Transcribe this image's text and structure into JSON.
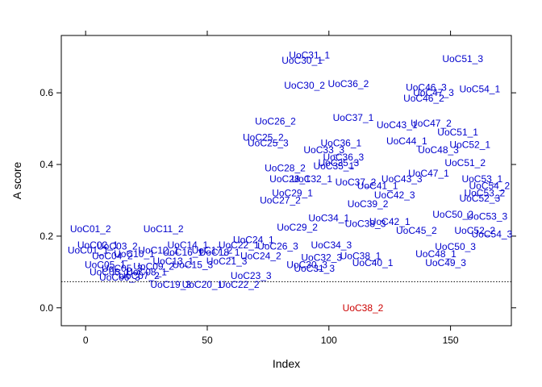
{
  "chart_data": {
    "type": "scatter",
    "xlabel": "Index",
    "ylabel": "A score",
    "xlim": [
      -10,
      175
    ],
    "ylim": [
      -0.05,
      0.76
    ],
    "xticks": [
      0,
      50,
      100,
      150
    ],
    "yticks": [
      0.0,
      0.2,
      0.4,
      0.6
    ],
    "grid": false,
    "reference_line": {
      "y": 0.073,
      "style": "dotted"
    },
    "colors": {
      "normal": "#0000cc",
      "flagged": "#cc0000",
      "axis": "#000000"
    },
    "points": [
      {
        "label": "UoC01_2",
        "x": 2,
        "y": 0.22
      },
      {
        "label": "UoC01_1",
        "x": 1,
        "y": 0.16
      },
      {
        "label": "UoC02_1",
        "x": 5,
        "y": 0.175
      },
      {
        "label": "UoC03_2",
        "x": 13,
        "y": 0.172
      },
      {
        "label": "UoC04_2",
        "x": 11,
        "y": 0.145
      },
      {
        "label": "UoC05_1",
        "x": 8,
        "y": 0.12
      },
      {
        "label": "UoC05_3",
        "x": 15,
        "y": 0.11
      },
      {
        "label": "UoC06_1",
        "x": 10,
        "y": 0.1
      },
      {
        "label": "UoC06_3",
        "x": 14,
        "y": 0.085
      },
      {
        "label": "UoC07_2",
        "x": 22,
        "y": 0.09
      },
      {
        "label": "UoC08_1",
        "x": 25,
        "y": 0.1
      },
      {
        "label": "UoC09_2",
        "x": 28,
        "y": 0.115
      },
      {
        "label": "UoC10_1",
        "x": 20,
        "y": 0.15
      },
      {
        "label": "UoC11_2",
        "x": 32,
        "y": 0.22
      },
      {
        "label": "UoC12_1",
        "x": 30,
        "y": 0.16
      },
      {
        "label": "UoC13_1",
        "x": 36,
        "y": 0.13
      },
      {
        "label": "UoC14_1",
        "x": 42,
        "y": 0.175
      },
      {
        "label": "UoC15_3",
        "x": 44,
        "y": 0.12
      },
      {
        "label": "UoC16_1",
        "x": 40,
        "y": 0.155
      },
      {
        "label": "UoC17_2",
        "x": 52,
        "y": 0.16
      },
      {
        "label": "UoC18_1",
        "x": 55,
        "y": 0.155
      },
      {
        "label": "UoC19_3",
        "x": 35,
        "y": 0.065
      },
      {
        "label": "UoC20_1",
        "x": 48,
        "y": 0.065
      },
      {
        "label": "UoC21_3",
        "x": 58,
        "y": 0.13
      },
      {
        "label": "UoC22_1",
        "x": 63,
        "y": 0.175
      },
      {
        "label": "UoC22_2",
        "x": 63,
        "y": 0.065
      },
      {
        "label": "UoC23_3",
        "x": 68,
        "y": 0.09
      },
      {
        "label": "UoC24_1",
        "x": 69,
        "y": 0.19
      },
      {
        "label": "UoC24_2",
        "x": 72,
        "y": 0.145
      },
      {
        "label": "UoC25_2",
        "x": 73,
        "y": 0.475
      },
      {
        "label": "UoC25_3",
        "x": 75,
        "y": 0.46
      },
      {
        "label": "UoC26_2",
        "x": 78,
        "y": 0.52
      },
      {
        "label": "UoC26_3",
        "x": 79,
        "y": 0.172
      },
      {
        "label": "UoC27_2",
        "x": 80,
        "y": 0.3
      },
      {
        "label": "UoC28_2",
        "x": 82,
        "y": 0.39
      },
      {
        "label": "UoC28_1",
        "x": 84,
        "y": 0.36
      },
      {
        "label": "UoC29_1",
        "x": 85,
        "y": 0.32
      },
      {
        "label": "UoC29_2",
        "x": 87,
        "y": 0.225
      },
      {
        "label": "UoC30_1",
        "x": 89,
        "y": 0.69
      },
      {
        "label": "UoC30_2",
        "x": 90,
        "y": 0.62
      },
      {
        "label": "UoC30_3",
        "x": 91,
        "y": 0.12
      },
      {
        "label": "UoC31_1",
        "x": 92,
        "y": 0.705
      },
      {
        "label": "UoC31_3",
        "x": 94,
        "y": 0.11
      },
      {
        "label": "UoC32_1",
        "x": 93,
        "y": 0.36
      },
      {
        "label": "UoC32_3",
        "x": 97,
        "y": 0.14
      },
      {
        "label": "UoC33_3",
        "x": 98,
        "y": 0.44
      },
      {
        "label": "UoC34_1",
        "x": 100,
        "y": 0.25
      },
      {
        "label": "UoC34_3",
        "x": 101,
        "y": 0.175
      },
      {
        "label": "UoC35_1",
        "x": 102,
        "y": 0.395
      },
      {
        "label": "UoC35_3",
        "x": 104,
        "y": 0.405
      },
      {
        "label": "UoC36_1",
        "x": 105,
        "y": 0.46
      },
      {
        "label": "UoC36_2",
        "x": 108,
        "y": 0.625
      },
      {
        "label": "UoC36_3",
        "x": 106,
        "y": 0.42
      },
      {
        "label": "UoC37_1",
        "x": 110,
        "y": 0.53
      },
      {
        "label": "UoC37_2",
        "x": 111,
        "y": 0.35
      },
      {
        "label": "UoC38_1",
        "x": 113,
        "y": 0.145
      },
      {
        "label": "UoC38_2",
        "x": 114,
        "y": 0.0,
        "flagged": true
      },
      {
        "label": "UoC38_3",
        "x": 115,
        "y": 0.235
      },
      {
        "label": "UoC39_2",
        "x": 116,
        "y": 0.29
      },
      {
        "label": "UoC40_1",
        "x": 118,
        "y": 0.125
      },
      {
        "label": "UoC41_1",
        "x": 120,
        "y": 0.34
      },
      {
        "label": "UoC42_1",
        "x": 125,
        "y": 0.24
      },
      {
        "label": "UoC42_3",
        "x": 127,
        "y": 0.315
      },
      {
        "label": "UoC43_1",
        "x": 128,
        "y": 0.51
      },
      {
        "label": "UoC43_3",
        "x": 130,
        "y": 0.36
      },
      {
        "label": "UoC44_1",
        "x": 132,
        "y": 0.465
      },
      {
        "label": "UoC45_2",
        "x": 136,
        "y": 0.215
      },
      {
        "label": "UoC46_2",
        "x": 139,
        "y": 0.585
      },
      {
        "label": "UoC46_3",
        "x": 140,
        "y": 0.615
      },
      {
        "label": "UoC47_1",
        "x": 141,
        "y": 0.375
      },
      {
        "label": "UoC47_2",
        "x": 142,
        "y": 0.515
      },
      {
        "label": "UoC47_3",
        "x": 143,
        "y": 0.6
      },
      {
        "label": "UoC48_1",
        "x": 144,
        "y": 0.15
      },
      {
        "label": "UoC48_3",
        "x": 145,
        "y": 0.44
      },
      {
        "label": "UoC49_3",
        "x": 148,
        "y": 0.125
      },
      {
        "label": "UoC50_2",
        "x": 151,
        "y": 0.26
      },
      {
        "label": "UoC50_3",
        "x": 152,
        "y": 0.17
      },
      {
        "label": "UoC51_1",
        "x": 153,
        "y": 0.49
      },
      {
        "label": "UoC51_2",
        "x": 156,
        "y": 0.405
      },
      {
        "label": "UoC51_3",
        "x": 155,
        "y": 0.695
      },
      {
        "label": "UoC52_1",
        "x": 158,
        "y": 0.455
      },
      {
        "label": "UoC52_2",
        "x": 160,
        "y": 0.215
      },
      {
        "label": "UoC52_3",
        "x": 162,
        "y": 0.305
      },
      {
        "label": "UoC53_1",
        "x": 163,
        "y": 0.36
      },
      {
        "label": "UoC53_2",
        "x": 164,
        "y": 0.32
      },
      {
        "label": "UoC53_3",
        "x": 165,
        "y": 0.255
      },
      {
        "label": "UoC54_1",
        "x": 162,
        "y": 0.61
      },
      {
        "label": "UoC54_2",
        "x": 166,
        "y": 0.34
      },
      {
        "label": "UoC54_3",
        "x": 167,
        "y": 0.205
      }
    ]
  }
}
